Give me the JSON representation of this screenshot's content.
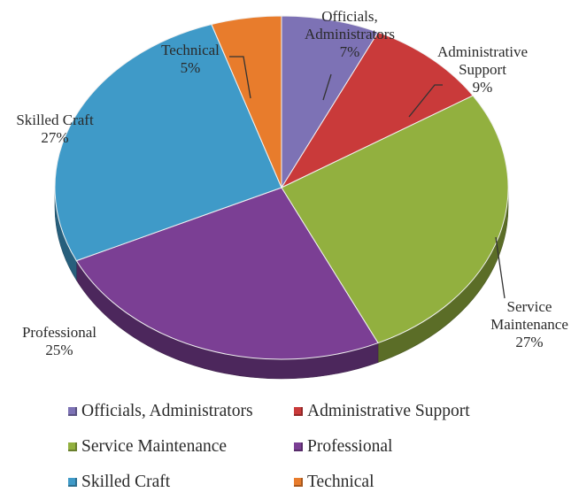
{
  "chart_data": {
    "type": "pie",
    "title": "",
    "slices": [
      {
        "label": "Officials, Administrators",
        "value": 7,
        "pct_label": "7%",
        "color": "#7d72b5",
        "callout": [
          "Officials,",
          "Administrators",
          "7%"
        ]
      },
      {
        "label": "Administrative Support",
        "value": 9,
        "pct_label": "9%",
        "color": "#c93a3a",
        "callout": [
          "Administrative",
          "Support",
          "9%"
        ]
      },
      {
        "label": "Service Maintenance",
        "value": 27,
        "pct_label": "27%",
        "color": "#92b03f",
        "callout": [
          "Service",
          "Maintenance",
          "27%"
        ]
      },
      {
        "label": "Professional",
        "value": 25,
        "pct_label": "25%",
        "color": "#7b3f94",
        "callout": [
          "Professional",
          "25%"
        ]
      },
      {
        "label": "Skilled Craft",
        "value": 27,
        "pct_label": "27%",
        "color": "#3f9ac8",
        "callout": [
          "Skilled Craft",
          "27%"
        ]
      },
      {
        "label": "Technical",
        "value": 5,
        "pct_label": "5%",
        "color": "#e87c2c",
        "callout": [
          "Technical",
          "5%"
        ]
      }
    ],
    "legend": {
      "placement": "bottom",
      "items": [
        {
          "label": "Officials, Administrators",
          "color": "#7d72b5"
        },
        {
          "label": "Administrative Support",
          "color": "#c93a3a"
        },
        {
          "label": "Service Maintenance",
          "color": "#92b03f"
        },
        {
          "label": "Professional",
          "color": "#7b3f94"
        },
        {
          "label": "Skilled Craft",
          "color": "#3f9ac8"
        },
        {
          "label": "Technical",
          "color": "#e87c2c"
        }
      ]
    }
  }
}
